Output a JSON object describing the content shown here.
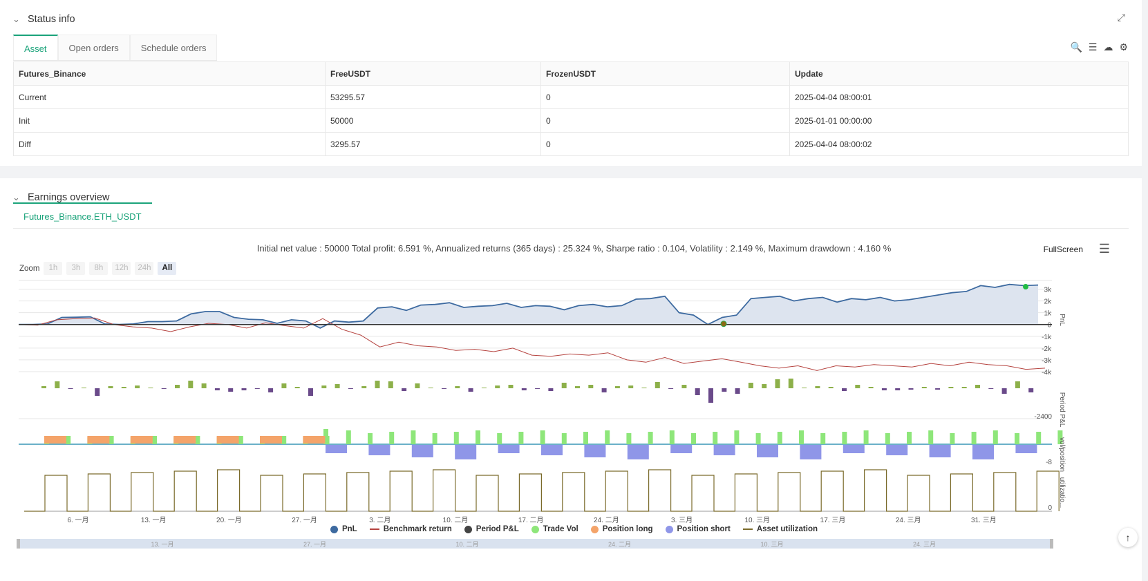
{
  "status": {
    "title": "Status info",
    "tabs": [
      "Asset",
      "Open orders",
      "Schedule orders"
    ],
    "table": {
      "headers": [
        "Futures_Binance",
        "FreeUSDT",
        "FrozenUSDT",
        "Update"
      ],
      "rows": [
        [
          "Current",
          "53295.57",
          "0",
          "2025-04-04 08:00:01"
        ],
        [
          "Init",
          "50000",
          "0",
          "2025-01-01 00:00:00"
        ],
        [
          "Diff",
          "3295.57",
          "0",
          "2025-04-04 08:00:02"
        ]
      ]
    },
    "icons": [
      "search-icon",
      "list-icon",
      "cloud-download-icon",
      "gear-icon"
    ]
  },
  "earnings": {
    "title": "Earnings overview",
    "tab": "Futures_Binance.ETH_USDT",
    "summary": "Initial net value : 50000 Total profit: 6.591 %, Annualized returns (365 days) : 25.324 %, Sharpe ratio : 0.104, Volatility : 2.149 %, Maximum drawdown : 4.160 %",
    "fullscreen": "FullScreen",
    "zoom_label": "Zoom",
    "zoom_buttons": [
      "1h",
      "3h",
      "8h",
      "12h",
      "24h",
      "All"
    ],
    "legend": [
      "PnL",
      "Benchmark return",
      "Period P&L",
      "Trade Vol",
      "Position long",
      "Position short",
      "Asset utilization"
    ],
    "colors": {
      "pnl": "#3d6aa0",
      "benchmark": "#b5423e",
      "period": "#444444",
      "trade_vol": "#8ee67a",
      "position_long": "#f4a46a",
      "position_short": "#8f96e8",
      "utilization": "#7a6a2a",
      "accent": "#1aa37a"
    }
  },
  "chart_data": {
    "type": "line",
    "x_ticks": [
      "6. 一月",
      "13. 一月",
      "20. 一月",
      "27. 一月",
      "3. 二月",
      "10. 二月",
      "17. 二月",
      "24. 二月",
      "3. 三月",
      "10. 三月",
      "17. 三月",
      "24. 三月",
      "31. 三月"
    ],
    "navigator_ticks": [
      "13. 一月",
      "27. 一月",
      "10. 二月",
      "24. 二月",
      "10. 三月",
      "24. 三月"
    ],
    "pnl_axis": [
      "3k",
      "2k",
      "1k",
      "0",
      "-1k",
      "-2k",
      "-3k",
      "-4k"
    ],
    "axis_labels": [
      "PnL",
      "Period P&L",
      "vol/position",
      "utilizatio..."
    ],
    "period_axis": [
      "-2400"
    ],
    "vol_axis": [
      "-8"
    ],
    "util_axis": [
      "0"
    ],
    "pnl": [
      0,
      0,
      50,
      600,
      620,
      650,
      50,
      0,
      50,
      250,
      250,
      300,
      900,
      1100,
      1100,
      600,
      450,
      400,
      100,
      400,
      300,
      -300,
      300,
      200,
      300,
      1400,
      1500,
      1200,
      1650,
      1700,
      1850,
      1450,
      1550,
      1600,
      1800,
      1450,
      1600,
      1550,
      1250,
      1600,
      1700,
      1500,
      1600,
      2150,
      2200,
      2400,
      1000,
      800,
      0,
      600,
      800,
      2200,
      2300,
      2400,
      2000,
      2200,
      2300,
      1900,
      2200,
      2100,
      2300,
      2000,
      2100,
      2300,
      2500,
      2700,
      2800,
      3300,
      3150,
      3400,
      3300,
      3350
    ],
    "benchmark": [
      0,
      -50,
      400,
      500,
      550,
      0,
      -200,
      -300,
      -600,
      -200,
      100,
      0,
      -300,
      150,
      -100,
      -300,
      500,
      -400,
      -900,
      -1900,
      -1500,
      -1800,
      -1900,
      -2200,
      -2100,
      -2300,
      -2000,
      -2600,
      -2700,
      -2500,
      -2600,
      -2400,
      -3000,
      -3200,
      -2800,
      -3300,
      -3100,
      -2900,
      -3200,
      -3500,
      -3700,
      -3500,
      -3900,
      -3500,
      -3600,
      -3400,
      -3500,
      -3600,
      -3300,
      -3500,
      -3200,
      -3400,
      -3500,
      -3800,
      -3700
    ]
  }
}
